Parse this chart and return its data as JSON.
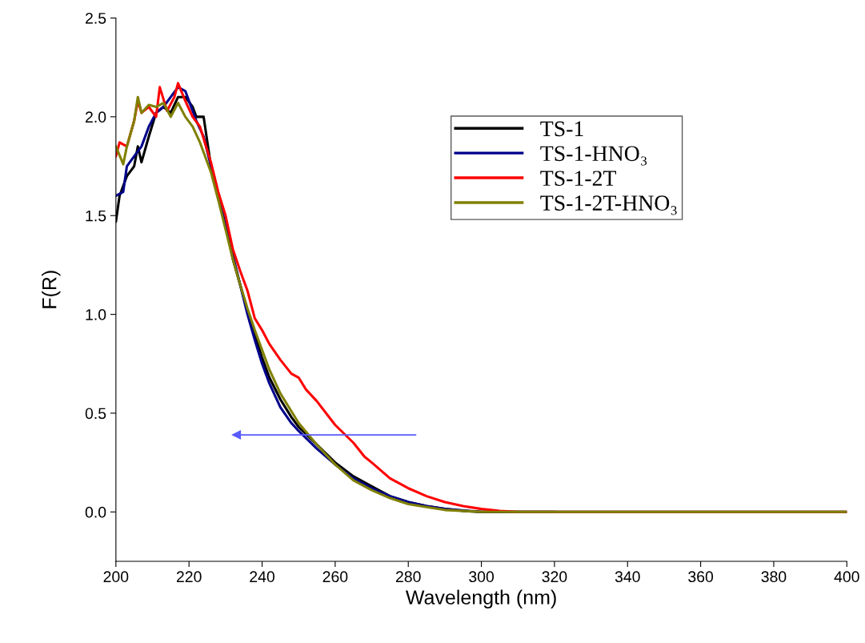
{
  "chart_data": {
    "type": "line",
    "xlabel": "Wavelength (nm)",
    "ylabel": "F(R)",
    "xlim": [
      200,
      400
    ],
    "xticks": [
      200,
      220,
      240,
      260,
      280,
      300,
      320,
      340,
      360,
      380,
      400
    ],
    "ylim": [
      -0.25,
      2.5
    ],
    "yticks": [
      {
        "value": 0,
        "label": "0.0"
      },
      {
        "value": 0.5,
        "label": "0.5"
      },
      {
        "value": 1,
        "label": "1.0"
      },
      {
        "value": 1.5,
        "label": "1.5"
      },
      {
        "value": 2,
        "label": "2.0"
      },
      {
        "value": 2.5,
        "label": "2.5"
      }
    ],
    "grid": false,
    "legend": "top right",
    "series": [
      {
        "name": "TS-1",
        "color": "#000000",
        "x": [
          200,
          201,
          203,
          205,
          206,
          207,
          209,
          211,
          213,
          215,
          217,
          219,
          221,
          222,
          224,
          226,
          228,
          230,
          232,
          234,
          236,
          238,
          240,
          242,
          245,
          248,
          250,
          255,
          260,
          265,
          270,
          275,
          280,
          285,
          290,
          295,
          300,
          320
        ],
        "values": [
          1.47,
          1.6,
          1.7,
          1.75,
          1.85,
          1.77,
          1.9,
          2.02,
          2.05,
          2.02,
          2.1,
          2.1,
          2.05,
          2.0,
          2.0,
          1.75,
          1.6,
          1.45,
          1.28,
          1.15,
          1.02,
          0.9,
          0.78,
          0.68,
          0.57,
          0.48,
          0.43,
          0.34,
          0.25,
          0.18,
          0.13,
          0.08,
          0.05,
          0.03,
          0.015,
          0.005,
          0.0,
          0.0
        ]
      },
      {
        "name": "TS-1-HNO₃",
        "color": "#00008b",
        "x": [
          200,
          202,
          203,
          205,
          207,
          209,
          211,
          213,
          215,
          217,
          219,
          220,
          222,
          224,
          226,
          228,
          230,
          232,
          234,
          236,
          238,
          240,
          242,
          245,
          248,
          250,
          255,
          260,
          265,
          270,
          275,
          280,
          285,
          290,
          300,
          400
        ],
        "values": [
          1.6,
          1.62,
          1.75,
          1.8,
          1.85,
          1.95,
          2.02,
          2.05,
          2.1,
          2.15,
          2.13,
          2.08,
          1.98,
          1.9,
          1.75,
          1.6,
          1.45,
          1.3,
          1.15,
          1.0,
          0.87,
          0.75,
          0.65,
          0.53,
          0.45,
          0.41,
          0.32,
          0.24,
          0.17,
          0.12,
          0.08,
          0.05,
          0.03,
          0.015,
          0.0,
          0.0
        ]
      },
      {
        "name": "TS-1-2T",
        "color": "#ff0000",
        "x": [
          200,
          201,
          203,
          205,
          206,
          207,
          209,
          211,
          212,
          214,
          216,
          217,
          219,
          221,
          223,
          226,
          228,
          230,
          232,
          234,
          236,
          238,
          240,
          242,
          245,
          248,
          250,
          252,
          255,
          260,
          265,
          268,
          270,
          275,
          280,
          285,
          290,
          295,
          300,
          305,
          310,
          400
        ],
        "values": [
          1.8,
          1.87,
          1.85,
          1.98,
          2.08,
          2.02,
          2.05,
          2.0,
          2.15,
          2.03,
          2.1,
          2.17,
          2.08,
          2.0,
          1.95,
          1.77,
          1.62,
          1.5,
          1.33,
          1.22,
          1.12,
          0.98,
          0.92,
          0.85,
          0.77,
          0.7,
          0.68,
          0.62,
          0.56,
          0.44,
          0.35,
          0.28,
          0.25,
          0.17,
          0.12,
          0.08,
          0.05,
          0.03,
          0.015,
          0.005,
          0.0,
          0.0
        ]
      },
      {
        "name": "TS-1-2T-HNO₃",
        "color": "#808000",
        "x": [
          200,
          202,
          203,
          205,
          206,
          207,
          209,
          211,
          213,
          215,
          217,
          219,
          221,
          223,
          226,
          228,
          230,
          232,
          234,
          236,
          238,
          240,
          242,
          245,
          248,
          250,
          255,
          260,
          265,
          270,
          275,
          280,
          285,
          290,
          300,
          400
        ],
        "values": [
          1.85,
          1.76,
          1.85,
          1.98,
          2.1,
          2.02,
          2.06,
          2.05,
          2.07,
          2.0,
          2.07,
          2.0,
          1.95,
          1.87,
          1.72,
          1.58,
          1.43,
          1.28,
          1.15,
          1.03,
          0.92,
          0.82,
          0.72,
          0.6,
          0.51,
          0.45,
          0.34,
          0.24,
          0.16,
          0.11,
          0.07,
          0.04,
          0.025,
          0.01,
          0.0,
          0.0
        ]
      },
      {
        "type": "line",
        "color": "#5a5aff",
        "x": [
          282,
          233
        ],
        "values": [
          0.39,
          0.39
        ]
      }
    ]
  }
}
